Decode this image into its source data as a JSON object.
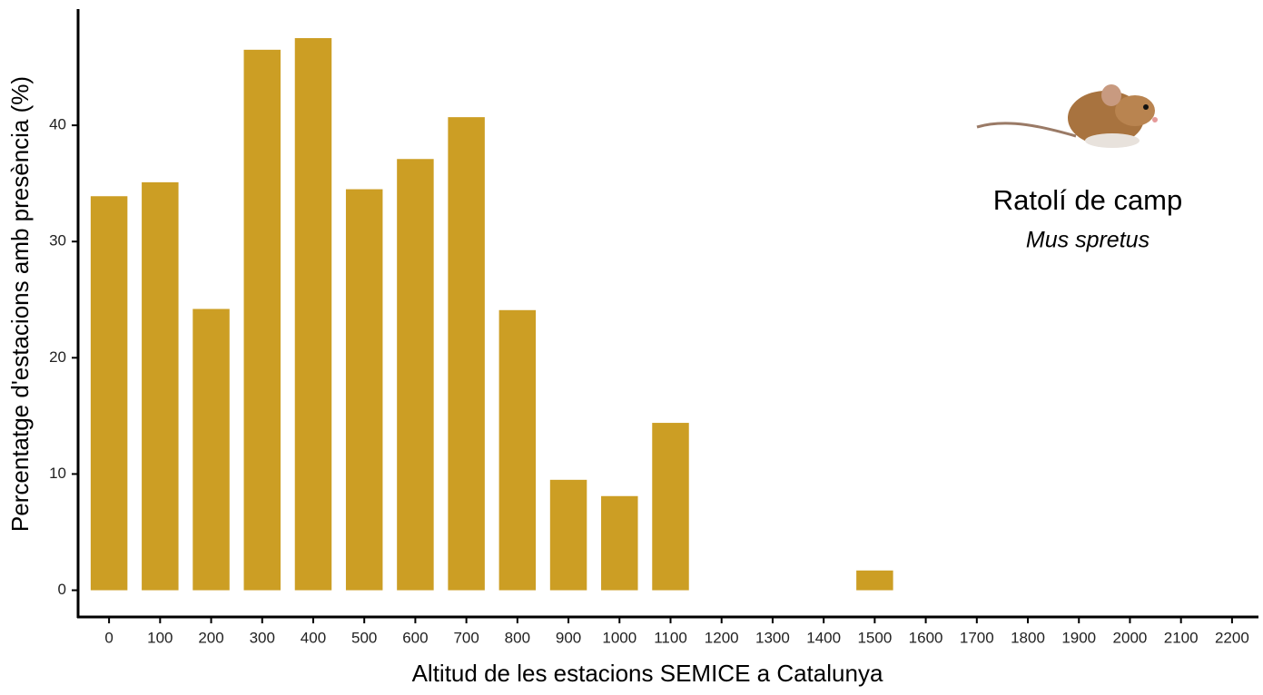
{
  "chart_data": {
    "type": "bar",
    "x_label": "Altitud de les estacions SEMICE a Catalunya",
    "y_label": "Percentatge d'estacions amb presència (%)",
    "annotations": {
      "common_name": "Ratolí de camp",
      "scientific_name": "Mus spretus"
    },
    "categories": [
      "0",
      "100",
      "200",
      "300",
      "400",
      "500",
      "600",
      "700",
      "800",
      "900",
      "1000",
      "1100",
      "1200",
      "1300",
      "1400",
      "1500",
      "1600",
      "1700",
      "1800",
      "1900",
      "2000",
      "2100",
      "2200"
    ],
    "values": [
      33.9,
      35.1,
      24.2,
      46.5,
      47.5,
      34.5,
      37.1,
      40.7,
      24.1,
      9.5,
      8.1,
      14.4,
      0,
      0,
      0,
      1.7,
      0,
      0,
      0,
      0,
      0,
      0,
      0
    ],
    "color": "#cc9e24",
    "ylim": [
      -2.3,
      50
    ],
    "yticks": [
      0,
      10,
      20,
      30,
      40
    ],
    "grid": false
  }
}
